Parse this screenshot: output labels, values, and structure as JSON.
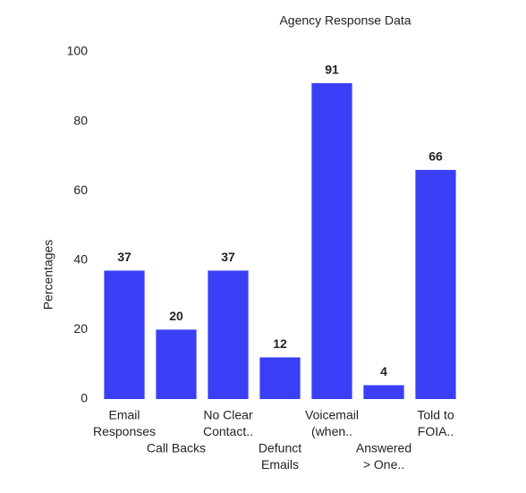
{
  "chart_data": {
    "type": "bar",
    "title": "Agency Response Data",
    "y_label": "Percentages",
    "categories": [
      [
        "Email",
        "Responses"
      ],
      [
        "Call Backs"
      ],
      [
        "No Clear",
        "Contact.."
      ],
      [
        "Defunct",
        "Emails"
      ],
      [
        "Voicemail",
        "(when.."
      ],
      [
        "Answered",
        "> One.."
      ],
      [
        "Told to",
        "FOIA.."
      ]
    ],
    "values": [
      37,
      20,
      37,
      12,
      91,
      4,
      66
    ],
    "color": "#3a3ff5",
    "ylim": [
      0,
      100
    ],
    "yticks": [
      0,
      20,
      40,
      60,
      80,
      100
    ],
    "grid": false
  }
}
